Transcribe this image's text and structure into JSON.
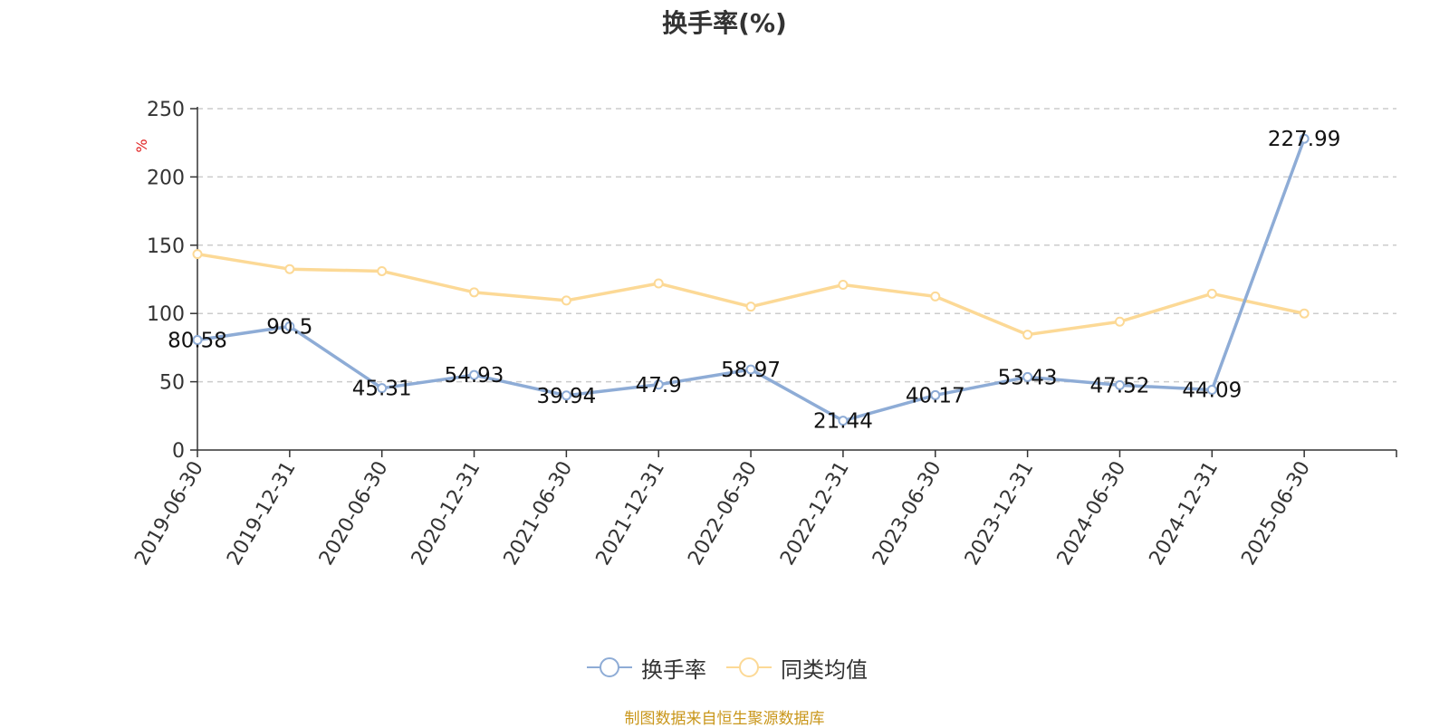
{
  "chart_data": {
    "type": "line",
    "title": "换手率(%)",
    "ylabel": "%",
    "xlabel": "",
    "categories": [
      "2019-06-30",
      "2019-12-31",
      "2020-06-30",
      "2020-12-31",
      "2021-06-30",
      "2021-12-31",
      "2022-06-30",
      "2022-12-31",
      "2023-06-30",
      "2023-12-31",
      "2024-06-30",
      "2024-12-31",
      "2025-06-30"
    ],
    "ylim": [
      0,
      250
    ],
    "yticks": [
      0,
      50,
      100,
      150,
      200,
      250
    ],
    "grid": true,
    "legend_position": "bottom-center",
    "series": [
      {
        "name": "换手率",
        "color": "#8eacd6",
        "values": [
          80.58,
          90.5,
          45.31,
          54.93,
          39.94,
          47.9,
          58.97,
          21.44,
          40.17,
          53.43,
          47.52,
          44.09,
          227.99
        ],
        "labels": [
          "80.58",
          "90.5",
          "45.31",
          "54.93",
          "39.94",
          "47.9",
          "58.97",
          "21.44",
          "40.17",
          "53.43",
          "47.52",
          "44.09",
          "227.99"
        ]
      },
      {
        "name": "同类均值",
        "color": "#fcd996",
        "values": [
          143.5,
          132.5,
          131,
          115.5,
          109.5,
          122,
          105,
          121,
          112.5,
          84.5,
          94,
          114.5,
          100
        ]
      }
    ],
    "source": "制图数据来自恒生聚源数据库"
  }
}
